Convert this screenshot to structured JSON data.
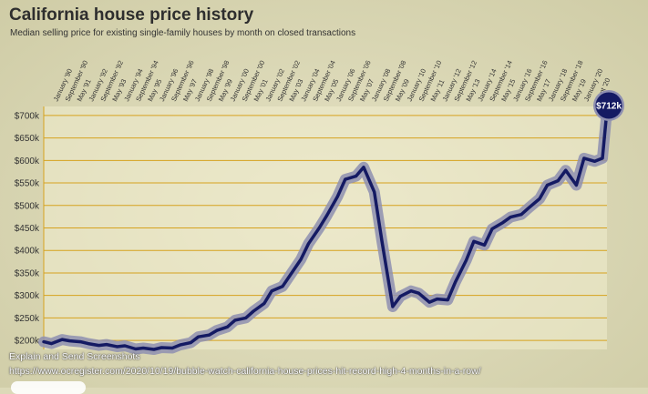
{
  "title": "California house price history",
  "subtitle": "Median selling price for existing single-family houses by month on closed transactions",
  "caption": "Explain and Send Screenshots",
  "source_url": "https://www.ocregister.com/2020/10/19/bubble-watch-california-house-prices-hit-record-high-4-months-in-a-row/",
  "colors": {
    "line": "#141a63",
    "halo": "#8e8fb0",
    "grid": "#d6a21e",
    "badge": "#141a63",
    "axis_text": "#333333"
  },
  "chart_data": {
    "type": "line",
    "title": "California house price history",
    "subtitle": "Median selling price for existing single-family houses by month on closed transactions",
    "ylim": [
      180000,
      720000
    ],
    "yticks": [
      200000,
      250000,
      300000,
      350000,
      400000,
      450000,
      500000,
      550000,
      600000,
      650000,
      700000
    ],
    "ytick_labels": [
      "$200k",
      "$250k",
      "$300k",
      "$350k",
      "$400k",
      "$450k",
      "$500k",
      "$550k",
      "$600k",
      "$650k",
      "$700k"
    ],
    "xtick_labels": [
      "January '90",
      "September '90",
      "May '91",
      "January '92",
      "September '92",
      "May '93",
      "January '94",
      "September '94",
      "May '95",
      "January '96",
      "September '96",
      "May '97",
      "January '98",
      "September '98",
      "May '99",
      "January '00",
      "September '00",
      "May '01",
      "January '02",
      "September '02",
      "May '03",
      "January '04",
      "September '04",
      "May '05",
      "January '06",
      "September '06",
      "May '07",
      "January '08",
      "September '08",
      "May '09",
      "January '10",
      "September '10",
      "May '11",
      "January '12",
      "September '12",
      "May '13",
      "January '14",
      "September '14",
      "May '15",
      "January '16",
      "September '16",
      "May '17",
      "January '18",
      "September '18",
      "May '19",
      "January '20",
      "Sept '20"
    ],
    "grid": true,
    "badge": "$712k",
    "series": [
      {
        "x": [
          "1990-01",
          "1990-06",
          "1991-01",
          "1991-06",
          "1992-01",
          "1992-06",
          "1993-01",
          "1993-06",
          "1994-01",
          "1994-06",
          "1995-01",
          "1995-06",
          "1996-01",
          "1996-06",
          "1997-01",
          "1997-06",
          "1998-01",
          "1998-06",
          "1999-01",
          "1999-06",
          "2000-01",
          "2000-06",
          "2001-01",
          "2001-06",
          "2002-01",
          "2002-06",
          "2003-01",
          "2003-06",
          "2004-01",
          "2004-06",
          "2005-01",
          "2005-06",
          "2006-01",
          "2006-06",
          "2007-01",
          "2007-06",
          "2008-01",
          "2008-06",
          "2009-01",
          "2009-06",
          "2010-01",
          "2010-06",
          "2011-01",
          "2011-06",
          "2012-01",
          "2012-06",
          "2013-01",
          "2013-06",
          "2014-01",
          "2014-06",
          "2015-01",
          "2015-06",
          "2016-01",
          "2016-06",
          "2017-01",
          "2017-06",
          "2018-01",
          "2018-06",
          "2019-01",
          "2019-06",
          "2020-01",
          "2020-06",
          "2020-09"
        ],
        "values": [
          197000,
          193000,
          202000,
          199000,
          197000,
          193000,
          189000,
          191000,
          186000,
          188000,
          181000,
          183000,
          180000,
          184000,
          183000,
          190000,
          195000,
          208000,
          212000,
          222000,
          230000,
          245000,
          250000,
          265000,
          282000,
          310000,
          320000,
          345000,
          380000,
          415000,
          450000,
          478000,
          520000,
          558000,
          565000,
          585000,
          530000,
          420000,
          275000,
          298000,
          310000,
          305000,
          285000,
          292000,
          290000,
          330000,
          378000,
          420000,
          412000,
          448000,
          462000,
          474000,
          480000,
          495000,
          515000,
          545000,
          555000,
          578000,
          545000,
          605000,
          598000,
          605000,
          712000
        ]
      }
    ]
  }
}
